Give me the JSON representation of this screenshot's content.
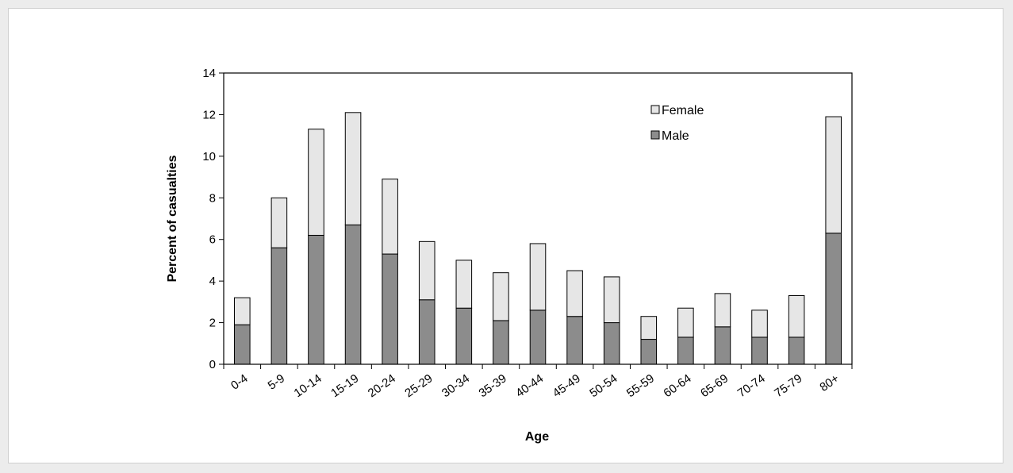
{
  "chart_data": {
    "type": "bar",
    "stacked": true,
    "title": "",
    "xlabel": "Age",
    "ylabel": "Percent of casualties",
    "ylim": [
      0,
      14
    ],
    "yticks": [
      0,
      2,
      4,
      6,
      8,
      10,
      12,
      14
    ],
    "grid": false,
    "legend_position": "top-right",
    "categories": [
      "0-4",
      "5-9",
      "10-14",
      "15-19",
      "20-24",
      "25-29",
      "30-34",
      "35-39",
      "40-44",
      "45-49",
      "50-54",
      "55-59",
      "60-64",
      "65-69",
      "70-74",
      "75-79",
      "80+"
    ],
    "series": [
      {
        "name": "Male",
        "color": "#8c8c8c",
        "values": [
          1.9,
          5.6,
          6.2,
          6.7,
          5.3,
          3.1,
          2.7,
          2.1,
          2.6,
          2.3,
          2.0,
          1.2,
          1.3,
          1.8,
          1.3,
          1.3,
          6.3
        ]
      },
      {
        "name": "Female",
        "color": "#e6e6e6",
        "values": [
          1.3,
          2.4,
          5.1,
          5.4,
          3.6,
          2.8,
          2.3,
          2.3,
          3.2,
          2.2,
          2.2,
          1.1,
          1.4,
          1.6,
          1.3,
          2.0,
          5.6
        ]
      }
    ],
    "legend": [
      {
        "label": "Female",
        "color": "#e6e6e6"
      },
      {
        "label": "Male",
        "color": "#8c8c8c"
      }
    ]
  }
}
